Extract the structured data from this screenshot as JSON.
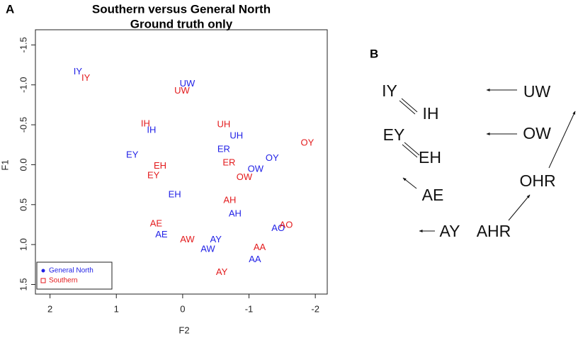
{
  "chart_data": {
    "type": "scatter",
    "panel_label": "A",
    "title": "Southern versus General North",
    "subtitle": "Ground truth only",
    "x_label": "F2",
    "y_label": "F1",
    "xlim": [
      2.22,
      -2.18
    ],
    "xticks": [
      2,
      1,
      0,
      -1,
      -2
    ],
    "ylim": [
      -1.69,
      1.62
    ],
    "yticks": [
      -1.5,
      {
        "value": -1,
        "label": "-1.0"
      },
      -0.5,
      {
        "value": 0,
        "label": "0.0"
      },
      0.5,
      {
        "value": 1,
        "label": "1.0"
      },
      1.5
    ],
    "legend": "bottom-left",
    "series": [
      {
        "name": "General North",
        "color": "#1f1fe6",
        "marker": "circle",
        "labels": [
          "IY",
          "UW",
          "IH",
          "UH",
          "ER",
          "EY",
          "OY",
          "OW",
          "EH",
          "AH",
          "AO",
          "AE",
          "AY",
          "AW",
          "AA"
        ],
        "x": [
          1.58,
          -0.07,
          0.47,
          -0.81,
          -0.62,
          0.76,
          -1.35,
          -1.1,
          0.12,
          -0.79,
          -1.44,
          0.32,
          -0.5,
          -0.38,
          -1.09
        ],
        "values": [
          -1.16,
          -1.01,
          -0.43,
          -0.36,
          -0.19,
          -0.12,
          -0.08,
          0.06,
          0.38,
          0.62,
          0.8,
          0.88,
          0.94,
          1.06,
          1.19
        ]
      },
      {
        "name": "Southern",
        "color": "#e31a1c",
        "marker": "square",
        "labels": [
          "IY",
          "UW",
          "IH",
          "UH",
          "OY",
          "ER",
          "EH",
          "EY",
          "OW",
          "AH",
          "AE",
          "AO",
          "AW",
          "AA",
          "AY"
        ],
        "x": [
          1.46,
          0.01,
          0.56,
          -0.62,
          -1.88,
          -0.7,
          0.34,
          0.44,
          -0.93,
          -0.71,
          0.4,
          -1.56,
          -0.07,
          -1.16,
          -0.59
        ],
        "values": [
          -1.08,
          -0.92,
          -0.51,
          -0.5,
          -0.27,
          -0.02,
          0.02,
          0.14,
          0.16,
          0.45,
          0.74,
          0.76,
          0.94,
          1.04,
          1.35
        ]
      }
    ]
  },
  "diagram": {
    "panel_label": "B",
    "nodes": [
      "IY",
      "IH",
      "EY",
      "EH",
      "AE",
      "AY",
      "AHR",
      "OHR",
      "OW",
      "UW"
    ]
  }
}
